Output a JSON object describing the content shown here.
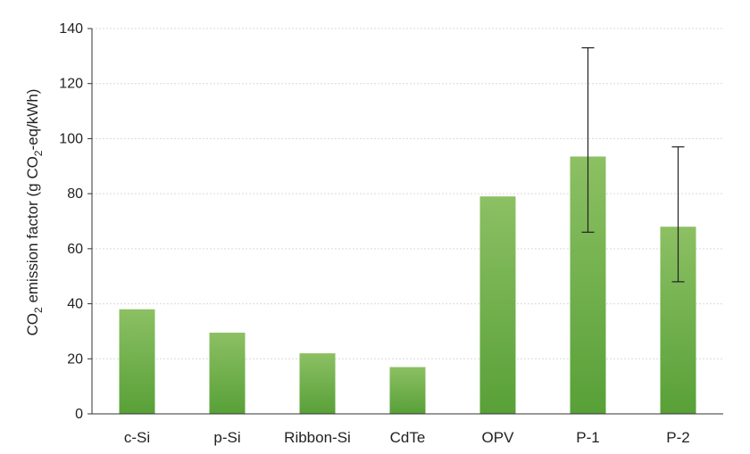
{
  "chart_data": {
    "type": "bar",
    "title": "",
    "xlabel": "",
    "ylabel": {
      "prefix": "CO",
      "sub1": "2",
      "middle": " emission factor (g CO",
      "sub2": "2",
      "suffix": "-eq/kWh)"
    },
    "ylim": [
      0,
      140
    ],
    "yticks": [
      0,
      20,
      40,
      60,
      80,
      100,
      120,
      140
    ],
    "grid": true,
    "categories": [
      "c-Si",
      "p-Si",
      "Ribbon-Si",
      "CdTe",
      "OPV",
      "P-1",
      "P-2"
    ],
    "values": [
      38,
      29.5,
      22,
      17,
      79,
      93.5,
      68
    ],
    "error_bars": [
      null,
      null,
      null,
      null,
      null,
      [
        66,
        133
      ],
      [
        48,
        97
      ]
    ],
    "colors": {
      "bar_top": "#8cc063",
      "bar_bottom": "#58a038",
      "grid": "#d9d9d9",
      "axis": "#333333",
      "error_bar": "#222222"
    }
  }
}
